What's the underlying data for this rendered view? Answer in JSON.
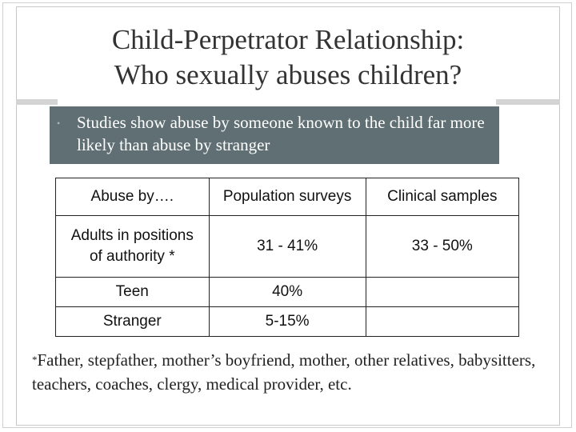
{
  "slide": {
    "title_line1": "Child-Perpetrator Relationship:",
    "title_line2": "Who sexually abuses children?",
    "bullet": "Studies show abuse by someone known to the child far more likely than abuse by stranger",
    "bullet_marker": "•"
  },
  "table": {
    "headers": [
      "Abuse by….",
      "Population surveys",
      "Clinical samples"
    ],
    "rows": [
      {
        "label_line1": "Adults in positions",
        "label_line2": "of authority *",
        "population": "31 - 41%",
        "clinical": "33 - 50%"
      },
      {
        "label": "Teen",
        "population": "40%",
        "clinical": ""
      },
      {
        "label": "Stranger",
        "population": "5-15%",
        "clinical": ""
      }
    ]
  },
  "footnote": {
    "marker": "*",
    "text": "Father, stepfather, mother’s boyfriend, mother, other relatives, babysitters, teachers, coaches, clergy, medical provider, etc."
  },
  "colors": {
    "bullet_box": "#5f6f74",
    "title_text": "#333333",
    "frame": "#c8c8c8"
  }
}
